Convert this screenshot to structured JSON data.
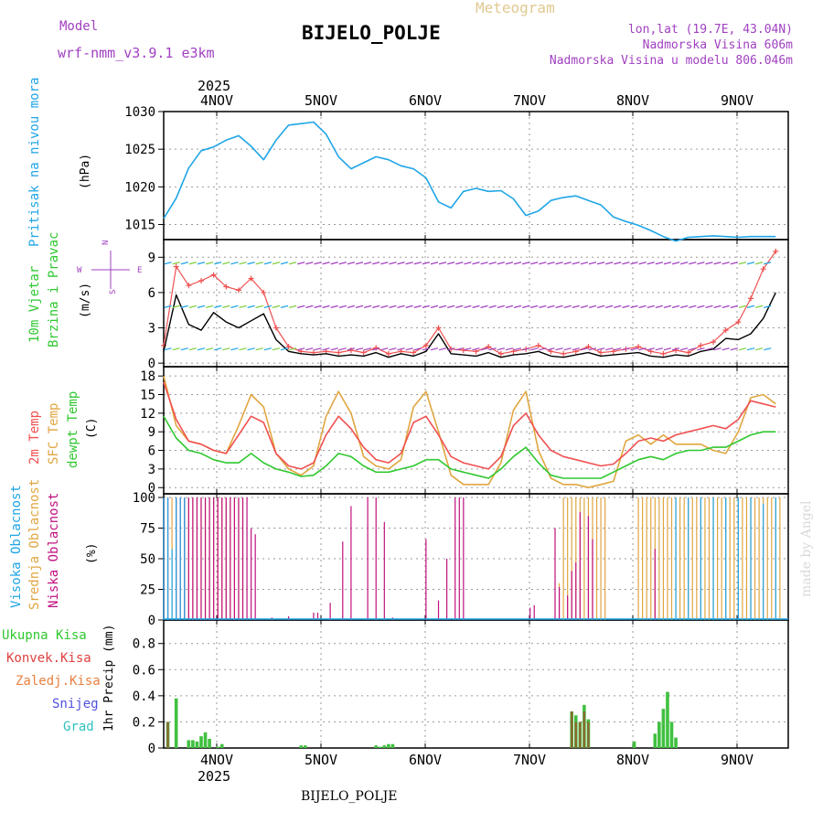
{
  "header": {
    "model_label": "Model",
    "model_name": "wrf-nmm_v3.9.1 e3km",
    "product": "Meteogram",
    "station": "BIJELO_POLJE",
    "lonlat": "lon,lat (19.7E, 43.04N)",
    "elevation": "Nadmorska Visina 606m",
    "model_elevation": "Nadmorska Visina u modelu 806.046m",
    "year": "2025",
    "watermark": "made by Angel",
    "footer_station": "BIJELO_POLJE"
  },
  "colors": {
    "pressure": "#1fa5e6",
    "temp": "#f05050",
    "sfc": "#e0a640",
    "dew": "#30c830",
    "purple": "#a040c0",
    "magenta": "#c01080",
    "precip": "#40c040",
    "conv": "#e04040",
    "frz": "#e88040",
    "snow": "#5050e0",
    "grad": "#30c0c0"
  },
  "days": [
    "4NOV",
    "5NOV",
    "6NOV",
    "7NOV",
    "8NOV",
    "9NOV"
  ],
  "chart_data": [
    {
      "type": "line",
      "id": "pressure",
      "ylabel_main": "Pritisak na nivou mora",
      "ylabel_unit": "(hPa)",
      "yticks": [
        1015,
        1020,
        1025,
        1030
      ],
      "ylim": [
        1013,
        1030
      ],
      "x": [
        0,
        3,
        6,
        9,
        12,
        15,
        18,
        21,
        24,
        27,
        30,
        33,
        36,
        39,
        42,
        45,
        48,
        51,
        54,
        57,
        60,
        63,
        66,
        69,
        72,
        75,
        78,
        81,
        84,
        87,
        90,
        93,
        96,
        99,
        102,
        105,
        108,
        111,
        114,
        117,
        120,
        123,
        126,
        129,
        132,
        135,
        138,
        141,
        144,
        147
      ],
      "values": [
        1015.8,
        1018.5,
        1022.5,
        1024.8,
        1025.3,
        1026.2,
        1026.8,
        1025.4,
        1023.6,
        1026.2,
        1028.2,
        1028.4,
        1028.6,
        1027.0,
        1024.0,
        1022.4,
        1023.2,
        1024.0,
        1023.6,
        1022.8,
        1022.4,
        1021.2,
        1018.0,
        1017.2,
        1019.4,
        1019.8,
        1019.4,
        1019.5,
        1018.4,
        1016.2,
        1016.8,
        1018.2,
        1018.6,
        1018.8,
        1018.2,
        1017.6,
        1016.0,
        1015.4,
        1014.9,
        1014.2,
        1013.4,
        1012.8,
        1013.3,
        1013.4,
        1013.5,
        1013.4,
        1013.3,
        1013.4,
        1013.4,
        1013.4
      ]
    },
    {
      "type": "line",
      "id": "wind",
      "ylabel_main": "10m Vjetar",
      "ylabel_main2": "Brzina i Pravac",
      "ylabel_unit": "(m/s)",
      "compass": {
        "n": "N",
        "s": "S",
        "e": "E",
        "w": "W"
      },
      "yticks": [
        0,
        3,
        6,
        9
      ],
      "ylim": [
        -0.3,
        10.5
      ],
      "x": [
        0,
        3,
        6,
        9,
        12,
        15,
        18,
        21,
        24,
        27,
        30,
        33,
        36,
        39,
        42,
        45,
        48,
        51,
        54,
        57,
        60,
        63,
        66,
        69,
        72,
        75,
        78,
        81,
        84,
        87,
        90,
        93,
        96,
        99,
        102,
        105,
        108,
        111,
        114,
        117,
        120,
        123,
        126,
        129,
        132,
        135,
        138,
        141,
        144,
        147
      ],
      "speed": [
        1.0,
        5.8,
        3.3,
        2.8,
        4.3,
        3.5,
        3.0,
        3.6,
        4.2,
        2.0,
        1.0,
        0.8,
        0.7,
        0.8,
        0.6,
        0.7,
        0.6,
        0.9,
        0.5,
        0.8,
        0.6,
        1.0,
        2.5,
        0.8,
        0.7,
        0.6,
        0.9,
        0.5,
        0.7,
        0.8,
        1.0,
        0.6,
        0.5,
        0.7,
        0.9,
        0.6,
        0.7,
        0.8,
        0.9,
        0.6,
        0.5,
        0.7,
        0.6,
        1.0,
        1.2,
        2.1,
        2.0,
        2.5,
        3.8,
        6.0
      ],
      "gust": [
        1.5,
        8.2,
        6.6,
        7.0,
        7.5,
        6.5,
        6.2,
        7.2,
        6.0,
        3.0,
        1.4,
        1.0,
        0.9,
        1.0,
        0.9,
        1.1,
        0.9,
        1.3,
        0.8,
        1.0,
        0.9,
        1.5,
        3.0,
        1.2,
        1.1,
        1.0,
        1.4,
        0.8,
        1.0,
        1.2,
        1.5,
        1.0,
        0.8,
        1.0,
        1.4,
        0.9,
        1.0,
        1.2,
        1.4,
        1.0,
        0.8,
        1.1,
        0.9,
        1.5,
        1.8,
        2.8,
        3.5,
        5.5,
        8.0,
        9.5
      ]
    },
    {
      "type": "line",
      "id": "temperature",
      "ylabel_1": "2m Temp",
      "ylabel_2": "SFC Temp",
      "ylabel_3": "dewpt Temp",
      "ylabel_unit": "(C)",
      "yticks": [
        0,
        3,
        6,
        9,
        12,
        15,
        18
      ],
      "ylim": [
        -1,
        19.5
      ],
      "x": [
        0,
        3,
        6,
        9,
        12,
        15,
        18,
        21,
        24,
        27,
        30,
        33,
        36,
        39,
        42,
        45,
        48,
        51,
        54,
        57,
        60,
        63,
        66,
        69,
        72,
        75,
        78,
        81,
        84,
        87,
        90,
        93,
        96,
        99,
        102,
        105,
        108,
        111,
        114,
        117,
        120,
        123,
        126,
        129,
        132,
        135,
        138,
        141,
        144,
        147
      ],
      "t2m": [
        17.0,
        11.0,
        7.5,
        7.0,
        6.0,
        5.5,
        8.5,
        11.5,
        10.5,
        5.5,
        3.5,
        3.0,
        4.0,
        8.5,
        11.5,
        9.5,
        6.5,
        4.5,
        4.0,
        5.5,
        10.5,
        11.5,
        8.5,
        5.0,
        4.0,
        3.5,
        3.0,
        5.0,
        10.0,
        12.0,
        8.5,
        6.0,
        5.0,
        4.5,
        4.0,
        3.5,
        3.8,
        5.5,
        7.5,
        8.0,
        7.5,
        8.5,
        9.0,
        9.5,
        10.0,
        9.5,
        11.0,
        14.0,
        13.5,
        13.0
      ],
      "sfc": [
        18.0,
        10.0,
        7.5,
        7.0,
        6.0,
        5.5,
        10.0,
        15.0,
        13.0,
        5.5,
        3.0,
        2.0,
        3.5,
        11.5,
        15.5,
        12.0,
        5.0,
        3.5,
        3.0,
        4.5,
        13.0,
        15.5,
        9.0,
        2.0,
        0.5,
        0.5,
        0.5,
        4.0,
        12.5,
        15.5,
        6.0,
        1.5,
        0.5,
        0.5,
        0.0,
        0.5,
        1.0,
        7.5,
        8.5,
        7.0,
        8.5,
        7.0,
        7.0,
        7.0,
        6.0,
        5.5,
        9.0,
        14.5,
        15.0,
        13.5
      ],
      "dew": [
        11.5,
        8.0,
        6.0,
        5.5,
        4.5,
        4.0,
        4.0,
        5.5,
        4.0,
        3.0,
        2.5,
        1.8,
        2.0,
        3.5,
        5.5,
        5.0,
        3.5,
        2.5,
        2.5,
        3.0,
        3.5,
        4.5,
        4.5,
        3.0,
        2.5,
        2.0,
        1.5,
        3.0,
        5.0,
        6.5,
        4.0,
        2.0,
        1.5,
        1.5,
        1.5,
        1.5,
        2.5,
        3.5,
        4.5,
        5.0,
        4.5,
        5.5,
        6.0,
        6.0,
        6.5,
        6.5,
        7.5,
        8.5,
        9.0,
        9.0
      ]
    },
    {
      "type": "bar",
      "id": "cloud",
      "ylabel_1": "Visoka Oblacnost",
      "ylabel_2": "Srednja Oblacnost",
      "ylabel_3": "Niska Oblacnost",
      "ylabel_unit": "(%)",
      "yticks": [
        0,
        25,
        50,
        75,
        100
      ],
      "ylim": [
        0,
        103
      ],
      "high": [
        [
          0,
          100
        ],
        [
          1,
          100
        ],
        [
          2,
          58
        ],
        [
          3,
          100
        ],
        [
          4,
          100
        ],
        [
          5,
          100
        ]
      ],
      "mid": [
        [
          1,
          100
        ],
        [
          2,
          100
        ],
        [
          3,
          100
        ],
        [
          5,
          100
        ],
        [
          6,
          100
        ],
        [
          7,
          100
        ],
        [
          8,
          100
        ],
        [
          9,
          100
        ],
        [
          10,
          100
        ],
        [
          11,
          100
        ],
        [
          12,
          100
        ],
        [
          13,
          100
        ],
        [
          14,
          100
        ],
        [
          15,
          100
        ],
        [
          16,
          100
        ],
        [
          17,
          100
        ],
        [
          18,
          100
        ],
        [
          19,
          100
        ]
      ],
      "low": [
        [
          0,
          100
        ],
        [
          1,
          100
        ],
        [
          3,
          100
        ],
        [
          4,
          100
        ],
        [
          5,
          100
        ],
        [
          6,
          100
        ],
        [
          7,
          100
        ],
        [
          8,
          100
        ],
        [
          9,
          100
        ],
        [
          10,
          100
        ],
        [
          11,
          100
        ],
        [
          12,
          100
        ],
        [
          13,
          100
        ],
        [
          14,
          100
        ],
        [
          15,
          100
        ],
        [
          16,
          100
        ],
        [
          17,
          100
        ],
        [
          18,
          100
        ],
        [
          19,
          100
        ],
        [
          20,
          100
        ],
        [
          21,
          75
        ],
        [
          22,
          70
        ],
        [
          26,
          2
        ],
        [
          30,
          3
        ],
        [
          36,
          6
        ],
        [
          37,
          6
        ],
        [
          40,
          14
        ],
        [
          43,
          64
        ],
        [
          45,
          93
        ],
        [
          49,
          100
        ],
        [
          51,
          100
        ],
        [
          53,
          80
        ],
        [
          55,
          2
        ],
        [
          63,
          66
        ],
        [
          66,
          16
        ],
        [
          68,
          50
        ],
        [
          70,
          100
        ],
        [
          71,
          100
        ],
        [
          72,
          100
        ],
        [
          88,
          10
        ],
        [
          89,
          12
        ],
        [
          94,
          75
        ],
        [
          95,
          27
        ],
        [
          97,
          20
        ],
        [
          98,
          40
        ],
        [
          99,
          47
        ],
        [
          100,
          88
        ],
        [
          102,
          85
        ],
        [
          103,
          66
        ],
        [
          118,
          58
        ]
      ],
      "mid_extra": [
        [
          95,
          30
        ],
        [
          96,
          100
        ],
        [
          97,
          100
        ],
        [
          98,
          100
        ],
        [
          99,
          100
        ],
        [
          100,
          100
        ],
        [
          101,
          100
        ],
        [
          102,
          100
        ],
        [
          103,
          100
        ],
        [
          104,
          100
        ],
        [
          105,
          100
        ],
        [
          106,
          100
        ],
        [
          114,
          100
        ],
        [
          115,
          100
        ],
        [
          116,
          100
        ],
        [
          117,
          100
        ],
        [
          118,
          100
        ],
        [
          119,
          100
        ],
        [
          120,
          100
        ],
        [
          121,
          100
        ],
        [
          122,
          100
        ],
        [
          123,
          100
        ],
        [
          124,
          100
        ],
        [
          125,
          100
        ],
        [
          126,
          100
        ],
        [
          127,
          100
        ],
        [
          128,
          100
        ],
        [
          129,
          100
        ],
        [
          130,
          100
        ],
        [
          131,
          100
        ],
        [
          132,
          100
        ],
        [
          133,
          100
        ],
        [
          134,
          100
        ],
        [
          135,
          100
        ],
        [
          136,
          100
        ],
        [
          137,
          100
        ],
        [
          138,
          100
        ],
        [
          139,
          100
        ],
        [
          140,
          100
        ],
        [
          141,
          100
        ],
        [
          142,
          100
        ],
        [
          143,
          100
        ],
        [
          144,
          100
        ],
        [
          145,
          100
        ],
        [
          146,
          100
        ],
        [
          147,
          100
        ],
        [
          148,
          100
        ]
      ],
      "high_extra": [
        [
          123,
          100
        ],
        [
          126,
          100
        ],
        [
          129,
          100
        ],
        [
          132,
          100
        ],
        [
          135,
          100
        ],
        [
          138,
          100
        ],
        [
          141,
          100
        ],
        [
          144,
          95
        ],
        [
          147,
          100
        ]
      ]
    },
    {
      "type": "bar",
      "id": "precip",
      "ylabel_1": "Ukupna Kisa",
      "ylabel_2": "Konvek.Kisa",
      "ylabel_3": "Zaledj.Kisa",
      "ylabel_4": "Snijeg",
      "ylabel_5": "Grad",
      "ylabel_unit": "1hr Precip (mm)",
      "yticks": [
        0,
        0.2,
        0.4,
        0.6,
        0.8
      ],
      "ylim": [
        0,
        0.98
      ],
      "total": [
        [
          1,
          0.2
        ],
        [
          3,
          0.38
        ],
        [
          6,
          0.06
        ],
        [
          7,
          0.06
        ],
        [
          8,
          0.05
        ],
        [
          9,
          0.09
        ],
        [
          10,
          0.12
        ],
        [
          11,
          0.07
        ],
        [
          13,
          0.01
        ],
        [
          14,
          0.03
        ],
        [
          33,
          0.02
        ],
        [
          34,
          0.02
        ],
        [
          51,
          0.02
        ],
        [
          52,
          0.01
        ],
        [
          53,
          0.02
        ],
        [
          54,
          0.03
        ],
        [
          55,
          0.03
        ],
        [
          98,
          0.28
        ],
        [
          99,
          0.25
        ],
        [
          100,
          0.2
        ],
        [
          101,
          0.33
        ],
        [
          102,
          0.22
        ],
        [
          113,
          0.05
        ],
        [
          118,
          0.11
        ],
        [
          119,
          0.2
        ],
        [
          120,
          0.3
        ],
        [
          121,
          0.43
        ],
        [
          122,
          0.2
        ],
        [
          123,
          0.08
        ]
      ],
      "conv": [
        [
          1,
          0.2
        ],
        [
          98,
          0.28
        ],
        [
          99,
          0.2
        ],
        [
          100,
          0.2
        ],
        [
          101,
          0.28
        ],
        [
          102,
          0.2
        ]
      ]
    }
  ]
}
